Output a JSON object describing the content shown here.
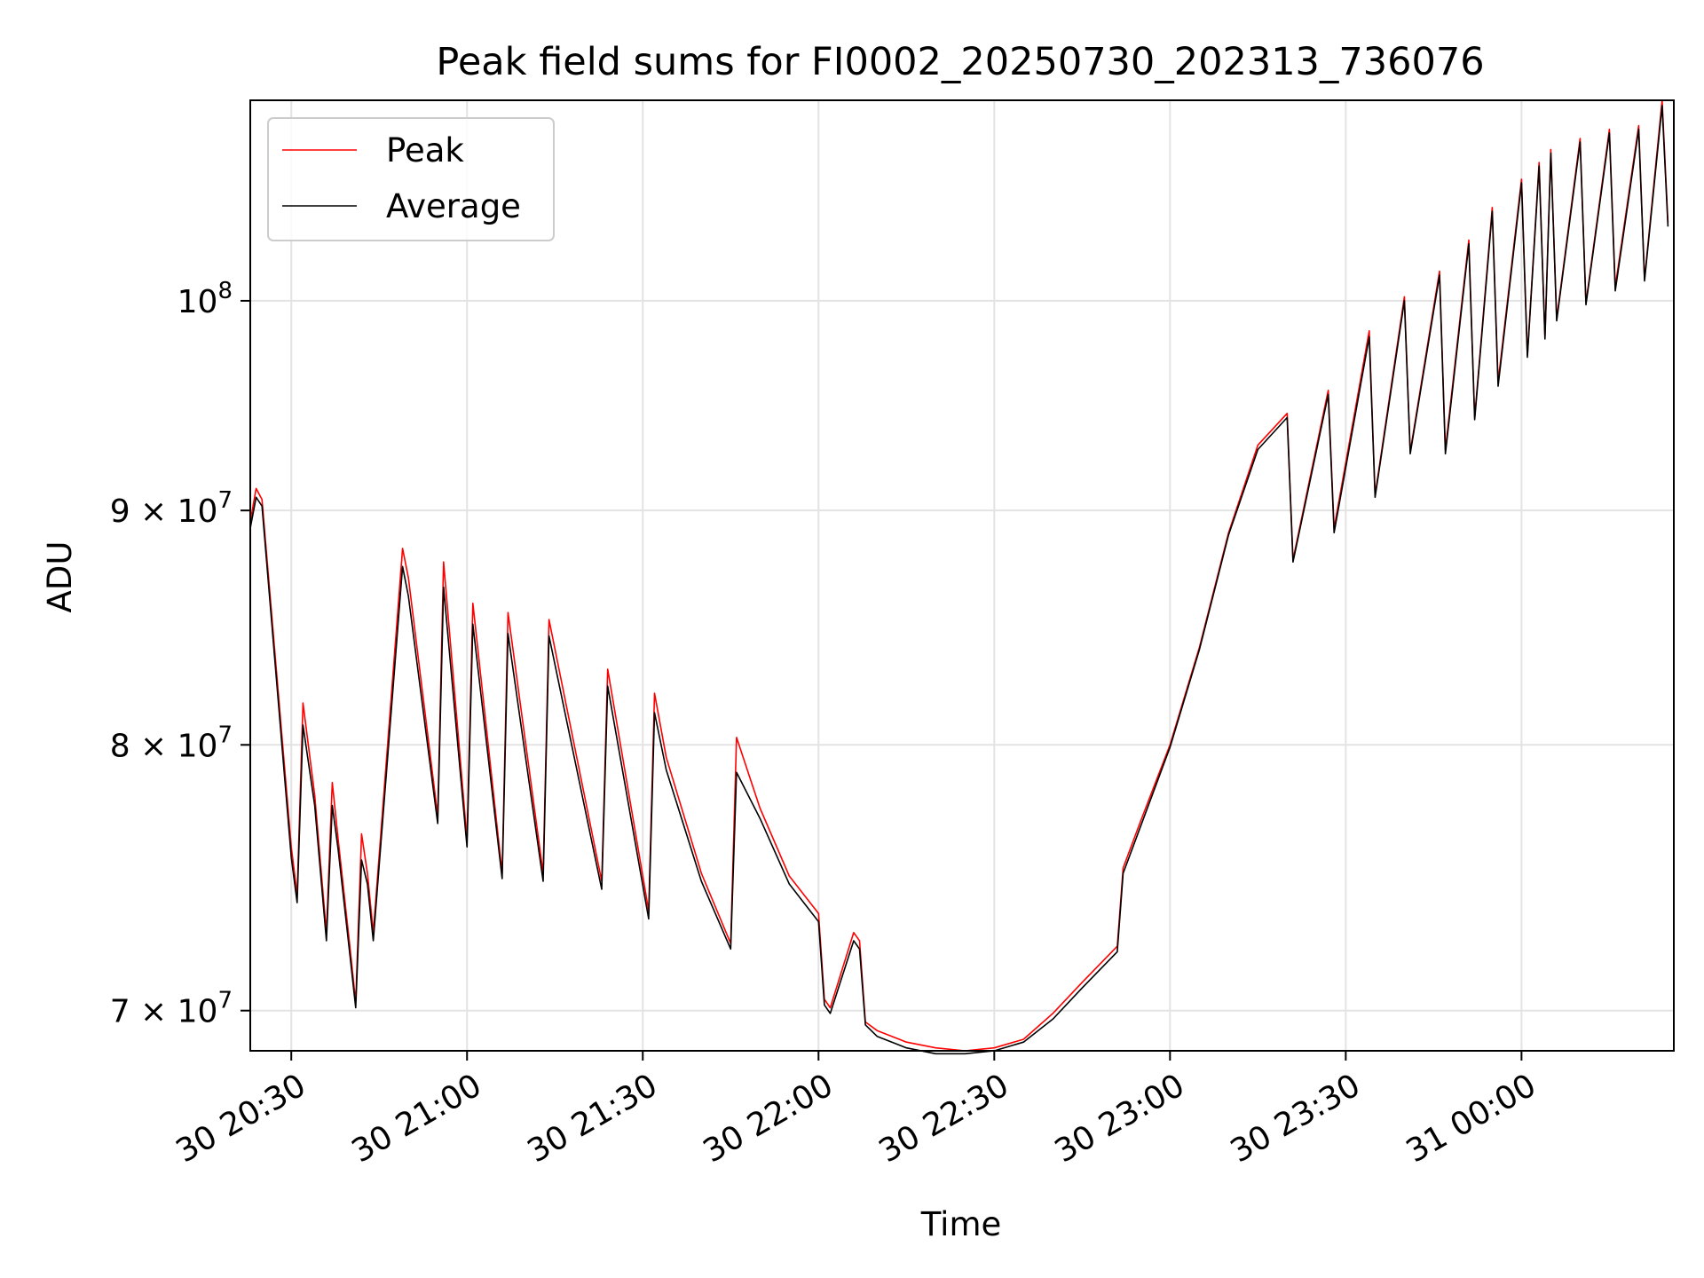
{
  "chart_data": {
    "type": "line",
    "title": "Peak field sums for FI0002_20250730_202313_736076",
    "xlabel": "Time",
    "ylabel": "ADU",
    "yscale": "log",
    "xlim": [
      "2025-07-30 20:23",
      "2025-07-31 00:26"
    ],
    "ylim": [
      68600000,
      110600000
    ],
    "x_ticks": [
      {
        "value": "2025-07-30 20:30",
        "label": "30 20:30"
      },
      {
        "value": "2025-07-30 21:00",
        "label": "30 21:00"
      },
      {
        "value": "2025-07-30 21:30",
        "label": "30 21:30"
      },
      {
        "value": "2025-07-30 22:00",
        "label": "30 22:00"
      },
      {
        "value": "2025-07-30 22:30",
        "label": "30 22:30"
      },
      {
        "value": "2025-07-30 23:00",
        "label": "30 23:00"
      },
      {
        "value": "2025-07-30 23:30",
        "label": "30 23:30"
      },
      {
        "value": "2025-07-31 00:00",
        "label": "31 00:00"
      }
    ],
    "y_ticks": [
      {
        "value": 70000000,
        "mantissa": "7",
        "exponent": "7"
      },
      {
        "value": 80000000,
        "mantissa": "8",
        "exponent": "7"
      },
      {
        "value": 90000000,
        "mantissa": "9",
        "exponent": "7"
      },
      {
        "value": 100000000,
        "mantissa": "",
        "exponent": "8"
      }
    ],
    "tick_base": "10",
    "times_symbol": "×",
    "grid": true,
    "legend_position": "upper-left",
    "series": [
      {
        "name": "Peak",
        "color": "#ff0000"
      },
      {
        "name": "Average",
        "color": "#000000"
      }
    ],
    "x": [
      "2025-07-30 20:23",
      "2025-07-30 20:24",
      "2025-07-30 20:25",
      "2025-07-30 20:30",
      "2025-07-30 20:31",
      "2025-07-30 20:32",
      "2025-07-30 20:34",
      "2025-07-30 20:36",
      "2025-07-30 20:37",
      "2025-07-30 20:38",
      "2025-07-30 20:40",
      "2025-07-30 20:41",
      "2025-07-30 20:42",
      "2025-07-30 20:43",
      "2025-07-30 20:44",
      "2025-07-30 20:49",
      "2025-07-30 20:50",
      "2025-07-30 20:55",
      "2025-07-30 20:56",
      "2025-07-30 21:00",
      "2025-07-30 21:01",
      "2025-07-30 21:06",
      "2025-07-30 21:07",
      "2025-07-30 21:13",
      "2025-07-30 21:14",
      "2025-07-30 21:23",
      "2025-07-30 21:24",
      "2025-07-30 21:31",
      "2025-07-30 21:32",
      "2025-07-30 21:34",
      "2025-07-30 21:40",
      "2025-07-30 21:45",
      "2025-07-30 21:46",
      "2025-07-30 21:50",
      "2025-07-30 21:55",
      "2025-07-30 22:00",
      "2025-07-30 22:01",
      "2025-07-30 22:02",
      "2025-07-30 22:06",
      "2025-07-30 22:07",
      "2025-07-30 22:08",
      "2025-07-30 22:10",
      "2025-07-30 22:15",
      "2025-07-30 22:20",
      "2025-07-30 22:25",
      "2025-07-30 22:30",
      "2025-07-30 22:35",
      "2025-07-30 22:40",
      "2025-07-30 22:45",
      "2025-07-30 22:51",
      "2025-07-30 22:52",
      "2025-07-30 22:55",
      "2025-07-30 23:00",
      "2025-07-30 23:05",
      "2025-07-30 23:10",
      "2025-07-30 23:15",
      "2025-07-30 23:20",
      "2025-07-30 23:21",
      "2025-07-30 23:27",
      "2025-07-30 23:28",
      "2025-07-30 23:34",
      "2025-07-30 23:35",
      "2025-07-30 23:40",
      "2025-07-30 23:41",
      "2025-07-30 23:46",
      "2025-07-30 23:47",
      "2025-07-30 23:51",
      "2025-07-30 23:52",
      "2025-07-30 23:55",
      "2025-07-30 23:56",
      "2025-07-31 00:00",
      "2025-07-31 00:01",
      "2025-07-31 00:03",
      "2025-07-31 00:04",
      "2025-07-31 00:05",
      "2025-07-31 00:06",
      "2025-07-31 00:10",
      "2025-07-31 00:11",
      "2025-07-31 00:15",
      "2025-07-31 00:16",
      "2025-07-31 00:20",
      "2025-07-31 00:21",
      "2025-07-31 00:24",
      "2025-07-31 00:25"
    ],
    "peak": [
      89500000,
      91000000,
      90500000,
      76000000,
      74200000,
      81700000,
      78000000,
      72800000,
      78500000,
      76300000,
      72300000,
      70300000,
      76500000,
      75000000,
      72800000,
      88300000,
      87000000,
      77200000,
      87700000,
      76300000,
      85900000,
      75000000,
      85500000,
      75000000,
      85200000,
      74700000,
      83100000,
      73600000,
      82100000,
      79500000,
      75000000,
      72400000,
      80300000,
      77500000,
      74900000,
      73500000,
      70400000,
      70100000,
      72800000,
      72500000,
      69600000,
      69300000,
      68900000,
      68700000,
      68600000,
      68700000,
      69000000,
      69900000,
      71000000,
      72300000,
      75200000,
      77000000,
      80000000,
      84000000,
      89000000,
      93000000,
      94500000,
      87800000,
      95600000,
      89200000,
      98500000,
      90700000,
      100200000,
      92700000,
      101500000,
      92800000,
      103100000,
      94300000,
      104800000,
      96000000,
      106300000,
      97300000,
      107200000,
      98200000,
      107900000,
      99100000,
      108500000,
      99900000,
      109000000,
      100700000,
      109200000,
      101100000,
      110600000,
      104000000
    ],
    "average": [
      89200000,
      90600000,
      90200000,
      75600000,
      73900000,
      80800000,
      77600000,
      72500000,
      77600000,
      75900000,
      72000000,
      70100000,
      75500000,
      74600000,
      72500000,
      87500000,
      86200000,
      76900000,
      86600000,
      76000000,
      85000000,
      74800000,
      84600000,
      74700000,
      84500000,
      74400000,
      82400000,
      73300000,
      81300000,
      79000000,
      74700000,
      72200000,
      78900000,
      77100000,
      74600000,
      73200000,
      70200000,
      69900000,
      72500000,
      72200000,
      69500000,
      69100000,
      68700000,
      68500000,
      68500000,
      68600000,
      68900000,
      69700000,
      70800000,
      72100000,
      75000000,
      76800000,
      79900000,
      83900000,
      88900000,
      92800000,
      94300000,
      87700000,
      95400000,
      89000000,
      98200000,
      90600000,
      100000000,
      92600000,
      101300000,
      92600000,
      102900000,
      94200000,
      104600000,
      95800000,
      106100000,
      97200000,
      107000000,
      98100000,
      107700000,
      99000000,
      108300000,
      99800000,
      108800000,
      100500000,
      109000000,
      101000000,
      110300000,
      103800000
    ]
  }
}
